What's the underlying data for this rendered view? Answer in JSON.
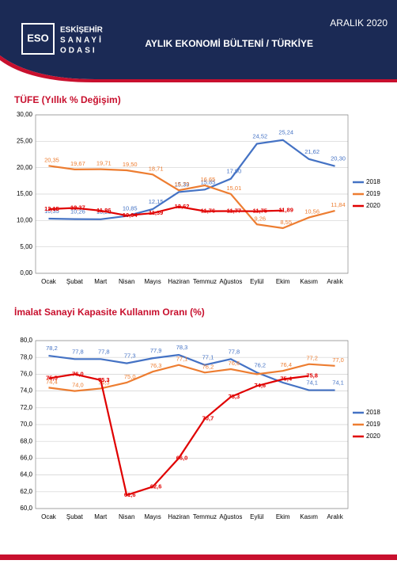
{
  "header": {
    "date": "ARALIK 2020",
    "logo": "ESO",
    "org_line1": "ESKİŞEHİR",
    "org_line2": "SANAYİ",
    "org_line3": "ODASI",
    "bulletin": "AYLIK EKONOMİ BÜLTENİ / TÜRKİYE"
  },
  "chart_data": [
    {
      "type": "line",
      "title": "TÜFE (Yıllık % Değişim)",
      "categories": [
        "Ocak",
        "Şubat",
        "Mart",
        "Nisan",
        "Mayıs",
        "Haziran",
        "Temmuz",
        "Ağustos",
        "Eylül",
        "Ekim",
        "Kasım",
        "Aralık"
      ],
      "ylim": [
        0,
        30
      ],
      "yticks": [
        {
          "value": 0,
          "label": "0,00"
        },
        {
          "value": 5,
          "label": "5,00"
        },
        {
          "value": 10,
          "label": "10,00"
        },
        {
          "value": 15,
          "label": "15,00"
        },
        {
          "value": 20,
          "label": "20,00"
        },
        {
          "value": 25,
          "label": "25,00"
        },
        {
          "value": 30,
          "label": "30,00"
        }
      ],
      "grid": true,
      "legend": "right",
      "series": [
        {
          "name": "2018",
          "color": "#4472c4",
          "values": [
            10.35,
            10.26,
            10.23,
            10.85,
            12.15,
            15.39,
            15.85,
            17.9,
            24.52,
            25.24,
            21.62,
            20.3
          ],
          "value_labels": [
            "10,35",
            "10,26",
            "10,23",
            "10,85",
            "12,15",
            "15,39",
            "15,85",
            "17,90",
            "24,52",
            "25,24",
            "21,62",
            "20,30"
          ]
        },
        {
          "name": "2019",
          "color": "#ed7d31",
          "values": [
            20.35,
            19.67,
            19.71,
            19.5,
            18.71,
            15.72,
            16.65,
            15.01,
            9.26,
            8.55,
            10.56,
            11.84
          ],
          "value_labels": [
            "20,35",
            "19,67",
            "19,71",
            "19,50",
            "18,71",
            "15,72",
            "16,65",
            "15,01",
            "9,26",
            "8,55",
            "10,56",
            "11,84"
          ]
        },
        {
          "name": "2020",
          "color": "#e00000",
          "values": [
            12.15,
            12.37,
            11.86,
            10.94,
            11.39,
            12.62,
            11.76,
            11.77,
            11.75,
            11.89,
            null,
            null
          ],
          "value_labels": [
            "12,15",
            "12,37",
            "11,86",
            "10,94",
            "11,39",
            "12,62",
            "11,76",
            "11,77",
            "11,75",
            "11,89",
            null,
            null
          ]
        }
      ]
    },
    {
      "type": "line",
      "title": "İmalat Sanayi Kapasite Kullanım Oranı (%)",
      "categories": [
        "Ocak",
        "Şubat",
        "Mart",
        "Nisan",
        "Mayıs",
        "Haziran",
        "Temmuz",
        "Ağustos",
        "Eylül",
        "Ekim",
        "Kasım",
        "Aralık"
      ],
      "ylim": [
        60,
        80
      ],
      "yticks": [
        {
          "value": 60,
          "label": "60,0"
        },
        {
          "value": 62,
          "label": "62,0"
        },
        {
          "value": 64,
          "label": "64,0"
        },
        {
          "value": 66,
          "label": "66,0"
        },
        {
          "value": 68,
          "label": "68,0"
        },
        {
          "value": 70,
          "label": "70,0"
        },
        {
          "value": 72,
          "label": "72,0"
        },
        {
          "value": 74,
          "label": "74,0"
        },
        {
          "value": 76,
          "label": "76,0"
        },
        {
          "value": 78,
          "label": "78,0"
        },
        {
          "value": 80,
          "label": "80,0"
        }
      ],
      "grid": true,
      "legend": "right",
      "series": [
        {
          "name": "2018",
          "color": "#4472c4",
          "values": [
            78.2,
            77.8,
            77.8,
            77.3,
            77.9,
            78.3,
            77.1,
            77.8,
            76.2,
            75.0,
            74.1,
            74.1
          ],
          "value_labels": [
            "78,2",
            "77,8",
            "77,8",
            "77,3",
            "77,9",
            "78,3",
            "77,1",
            "77,8",
            "76,2",
            null,
            "74,1",
            "74,1"
          ]
        },
        {
          "name": "2019",
          "color": "#ed7d31",
          "values": [
            74.4,
            74.0,
            74.3,
            75.0,
            76.3,
            77.1,
            76.2,
            76.6,
            76.0,
            76.4,
            77.2,
            77.0
          ],
          "value_labels": [
            "74,4",
            "74,0",
            "74,3",
            "75,0",
            "76,3",
            "77,1",
            "76,2",
            "76,6",
            null,
            "76,4",
            "77,2",
            "77,0"
          ]
        },
        {
          "name": "2020",
          "color": "#e00000",
          "values": [
            75.5,
            76.0,
            75.3,
            61.6,
            62.6,
            66.0,
            70.7,
            73.3,
            74.6,
            75.4,
            75.8,
            null
          ],
          "value_labels": [
            "75,5",
            "76,0",
            "75,3",
            "61,6",
            "62,6",
            "66,0",
            "70,7",
            "73,3",
            "74,6",
            "75,4",
            "75,8",
            null
          ]
        }
      ]
    }
  ]
}
